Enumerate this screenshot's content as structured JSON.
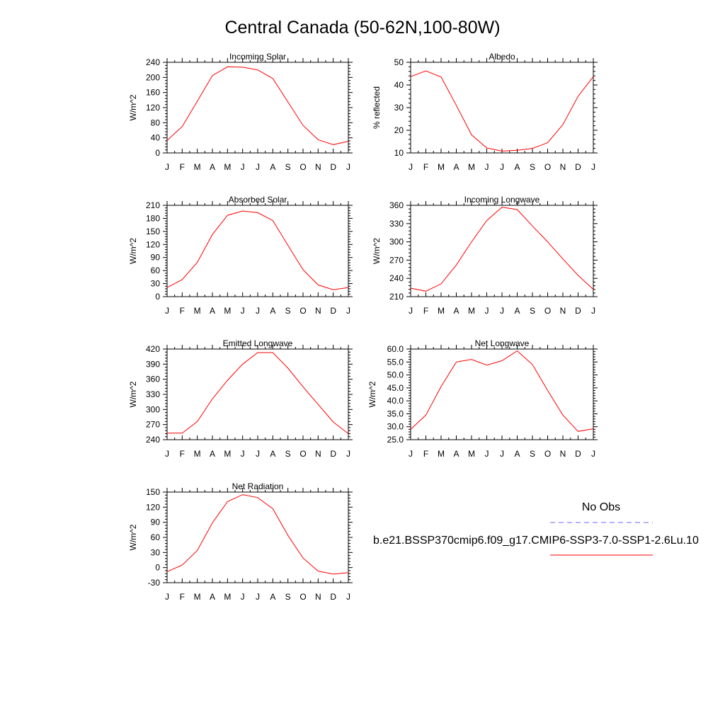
{
  "title": "Central Canada (50-62N,100-80W)",
  "months": [
    "J",
    "F",
    "M",
    "A",
    "M",
    "J",
    "J",
    "A",
    "S",
    "O",
    "N",
    "D",
    "J"
  ],
  "colors": {
    "model": "#ff0000",
    "obs": "#6666ff"
  },
  "legend": {
    "obs_label": "No Obs",
    "model_label": "b.e21.BSSP370cmip6.f09_g17.CMIP6-SSP3-7.0-SSP1-2.6Lu.10"
  },
  "chart_data": [
    {
      "type": "line",
      "title": "Incoming Solar",
      "ylabel": "W/m^2",
      "ylim": [
        0,
        240
      ],
      "yticks": [
        "0",
        "40",
        "80",
        "120",
        "160",
        "200",
        "240"
      ],
      "values": [
        33,
        70,
        137,
        205,
        228,
        227,
        220,
        197,
        135,
        73,
        35,
        22,
        31
      ]
    },
    {
      "type": "line",
      "title": "Albedo",
      "ylabel": "% reflected",
      "ylim": [
        10,
        50
      ],
      "yticks": [
        "10",
        "20",
        "30",
        "40",
        "50"
      ],
      "values": [
        43.7,
        46.2,
        43.5,
        31,
        18,
        12.2,
        10.8,
        11.2,
        12,
        14.5,
        22.5,
        35,
        43.7
      ]
    },
    {
      "type": "line",
      "title": "Absorbed Solar",
      "ylabel": "W/m^2",
      "ylim": [
        0,
        210
      ],
      "yticks": [
        "0",
        "30",
        "60",
        "90",
        "120",
        "150",
        "180",
        "210"
      ],
      "values": [
        21,
        39,
        79,
        143,
        187,
        197,
        193,
        175,
        118,
        62,
        27,
        16,
        21
      ]
    },
    {
      "type": "line",
      "title": "Incoming Longwave",
      "ylabel": "W/m^2",
      "ylim": [
        210,
        360
      ],
      "yticks": [
        "210",
        "240",
        "270",
        "300",
        "330",
        "360"
      ],
      "values": [
        224,
        219,
        231,
        262,
        300,
        335,
        357,
        353,
        326,
        300,
        272,
        245,
        222
      ]
    },
    {
      "type": "line",
      "title": "Emitted Longwave",
      "ylabel": "W/m^2",
      "ylim": [
        240,
        420
      ],
      "yticks": [
        "240",
        "270",
        "300",
        "330",
        "360",
        "390",
        "420"
      ],
      "values": [
        253,
        253,
        276,
        321,
        358,
        390,
        413,
        413,
        382,
        345,
        310,
        275,
        252
      ]
    },
    {
      "type": "line",
      "title": "Net Longwave",
      "ylabel": "W/m^2",
      "ylim": [
        25,
        60
      ],
      "yticks": [
        "25.0",
        "30.0",
        "35.0",
        "40.0",
        "45.0",
        "50.0",
        "55.0",
        "60.0"
      ],
      "values": [
        29,
        34.5,
        45.5,
        55,
        56,
        53.8,
        55.5,
        59.3,
        54,
        44,
        34.5,
        28.2,
        29.2
      ]
    },
    {
      "type": "line",
      "title": "Net Radiation",
      "ylabel": "W/m^2",
      "ylim": [
        -30,
        150
      ],
      "yticks": [
        "-30",
        "0",
        "30",
        "60",
        "90",
        "120",
        "150"
      ],
      "values": [
        -8,
        5,
        34,
        89,
        131,
        145,
        139,
        117,
        64,
        19,
        -7,
        -13,
        -10
      ]
    }
  ]
}
